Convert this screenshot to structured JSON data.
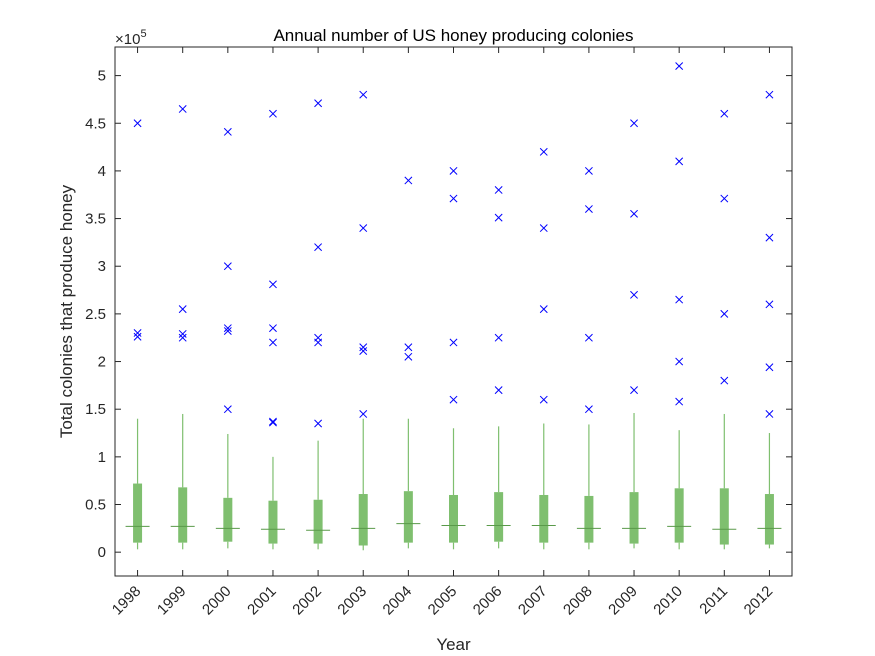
{
  "chart_data": {
    "type": "box",
    "title": "Annual number of US honey producing colonies",
    "xlabel": "Year",
    "ylabel": "Total colonies that produce honey",
    "categories": [
      "1998",
      "1999",
      "2000",
      "2001",
      "2002",
      "2003",
      "2004",
      "2005",
      "2006",
      "2007",
      "2008",
      "2009",
      "2010",
      "2011",
      "2012"
    ],
    "ylim": [
      -25000,
      530000
    ],
    "yticks": [
      0,
      50000,
      100000,
      150000,
      200000,
      250000,
      300000,
      350000,
      400000,
      450000,
      500000
    ],
    "ytick_labels": [
      "0",
      "0.5",
      "1",
      "1.5",
      "2",
      "2.5",
      "3",
      "3.5",
      "4",
      "4.5",
      "5"
    ],
    "y_exponent_base": "×10",
    "y_exponent_power": "5",
    "grid": false,
    "colors": {
      "box": "#7fbf6f",
      "median": "#5a9a4a",
      "outlier": "#0000ff",
      "axis": "#262626"
    },
    "boxes": [
      {
        "q1": 10000,
        "median": 27000,
        "q3": 72000,
        "lower": 3000,
        "upper": 140000
      },
      {
        "q1": 10000,
        "median": 27000,
        "q3": 68000,
        "lower": 3000,
        "upper": 145000
      },
      {
        "q1": 11000,
        "median": 25000,
        "q3": 57000,
        "lower": 4000,
        "upper": 124000
      },
      {
        "q1": 9000,
        "median": 24000,
        "q3": 54000,
        "lower": 3000,
        "upper": 100000
      },
      {
        "q1": 9000,
        "median": 23000,
        "q3": 55000,
        "lower": 3000,
        "upper": 117000
      },
      {
        "q1": 7000,
        "median": 25000,
        "q3": 61000,
        "lower": 2000,
        "upper": 140000
      },
      {
        "q1": 10000,
        "median": 30000,
        "q3": 64000,
        "lower": 4000,
        "upper": 140000
      },
      {
        "q1": 10000,
        "median": 28000,
        "q3": 60000,
        "lower": 3000,
        "upper": 130000
      },
      {
        "q1": 11000,
        "median": 28000,
        "q3": 63000,
        "lower": 4000,
        "upper": 132000
      },
      {
        "q1": 10000,
        "median": 28000,
        "q3": 60000,
        "lower": 3000,
        "upper": 135000
      },
      {
        "q1": 10000,
        "median": 25000,
        "q3": 59000,
        "lower": 3000,
        "upper": 134000
      },
      {
        "q1": 9000,
        "median": 25000,
        "q3": 63000,
        "lower": 4000,
        "upper": 146000
      },
      {
        "q1": 10000,
        "median": 27000,
        "q3": 67000,
        "lower": 3000,
        "upper": 128000
      },
      {
        "q1": 8000,
        "median": 24000,
        "q3": 67000,
        "lower": 3000,
        "upper": 145000
      },
      {
        "q1": 8000,
        "median": 25000,
        "q3": 61000,
        "lower": 4000,
        "upper": 125000
      }
    ],
    "outliers": [
      [
        450000,
        230000,
        226000
      ],
      [
        465000,
        255000,
        229000,
        225000
      ],
      [
        441000,
        300000,
        235000,
        232000,
        150000
      ],
      [
        460000,
        281000,
        235000,
        220000,
        137000,
        136000
      ],
      [
        471000,
        320000,
        225000,
        220000,
        135000
      ],
      [
        480000,
        340000,
        215000,
        211000,
        145000
      ],
      [
        390000,
        215000,
        205000
      ],
      [
        400000,
        371000,
        220000,
        160000
      ],
      [
        380000,
        351000,
        225000,
        170000
      ],
      [
        420000,
        340000,
        255000,
        160000
      ],
      [
        400000,
        360000,
        225000,
        150000
      ],
      [
        450000,
        355000,
        270000,
        170000
      ],
      [
        510000,
        410000,
        265000,
        200000,
        158000
      ],
      [
        460000,
        371000,
        250000,
        180000
      ],
      [
        480000,
        330000,
        260000,
        194000,
        145000
      ]
    ]
  }
}
